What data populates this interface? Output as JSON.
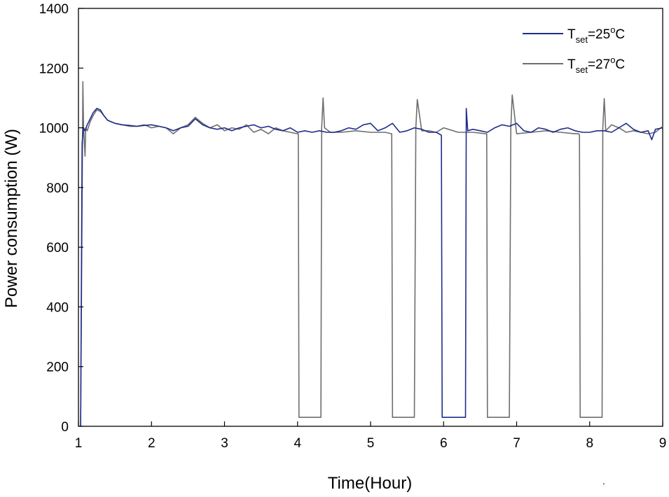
{
  "chart_data": {
    "type": "line",
    "title": "",
    "xlabel": "Time(Hour)",
    "ylabel": "Power consumption (W)",
    "xlim": [
      1,
      9
    ],
    "ylim": [
      0,
      1400
    ],
    "xticks": [
      1,
      2,
      3,
      4,
      5,
      6,
      7,
      8,
      9
    ],
    "yticks": [
      0,
      200,
      400,
      600,
      800,
      1000,
      1200,
      1400
    ],
    "grid": false,
    "legend_position": "top-right",
    "series": [
      {
        "name": "T_set=25°C",
        "label_main": "T",
        "label_sub": "set",
        "label_value": "=25",
        "label_deg": "o",
        "label_unit": "C",
        "color": "#1f2d8c",
        "x": [
          1.03,
          1.05,
          1.07,
          1.09,
          1.12,
          1.16,
          1.2,
          1.25,
          1.3,
          1.35,
          1.4,
          1.45,
          1.5,
          1.6,
          1.7,
          1.8,
          1.9,
          2.0,
          2.1,
          2.2,
          2.3,
          2.4,
          2.5,
          2.6,
          2.7,
          2.8,
          2.9,
          3.0,
          3.1,
          3.2,
          3.3,
          3.4,
          3.5,
          3.6,
          3.7,
          3.8,
          3.9,
          4.0,
          4.1,
          4.2,
          4.3,
          4.4,
          4.5,
          4.6,
          4.7,
          4.8,
          4.9,
          5.0,
          5.1,
          5.2,
          5.3,
          5.4,
          5.5,
          5.6,
          5.7,
          5.8,
          5.9,
          5.97,
          5.98,
          6.3,
          6.31,
          6.33,
          6.4,
          6.5,
          6.6,
          6.7,
          6.8,
          6.9,
          7.0,
          7.1,
          7.2,
          7.3,
          7.4,
          7.5,
          7.6,
          7.7,
          7.8,
          7.9,
          8.0,
          8.1,
          8.2,
          8.3,
          8.4,
          8.5,
          8.6,
          8.7,
          8.8,
          8.85,
          8.9,
          9.0
        ],
        "values": [
          0,
          950,
          1000,
          990,
          1010,
          1030,
          1050,
          1065,
          1060,
          1040,
          1025,
          1020,
          1015,
          1010,
          1008,
          1005,
          1008,
          1010,
          1005,
          1000,
          990,
          1000,
          1005,
          1030,
          1010,
          1000,
          995,
          1000,
          990,
          1000,
          1005,
          1010,
          1000,
          1005,
          995,
          990,
          1000,
          985,
          990,
          985,
          990,
          985,
          985,
          990,
          1000,
          995,
          1010,
          1015,
          990,
          1000,
          1015,
          985,
          990,
          1000,
          995,
          985,
          985,
          975,
          30,
          30,
          1065,
          990,
          995,
          990,
          985,
          1000,
          1010,
          1005,
          1015,
          990,
          985,
          1000,
          995,
          985,
          995,
          1000,
          990,
          985,
          985,
          990,
          990,
          985,
          1000,
          1015,
          995,
          985,
          990,
          960,
          995,
          1000
        ]
      },
      {
        "name": "T_set=27°C",
        "label_main": "T",
        "label_sub": "set",
        "label_value": "=27",
        "label_deg": "o",
        "label_unit": "C",
        "color": "#6e6e6e",
        "x": [
          1.03,
          1.06,
          1.07,
          1.09,
          1.1,
          1.12,
          1.16,
          1.2,
          1.25,
          1.3,
          1.35,
          1.4,
          1.5,
          1.6,
          1.7,
          1.8,
          1.9,
          2.0,
          2.1,
          2.2,
          2.3,
          2.4,
          2.5,
          2.6,
          2.7,
          2.8,
          2.9,
          3.0,
          3.1,
          3.2,
          3.3,
          3.4,
          3.5,
          3.6,
          3.7,
          3.8,
          3.9,
          4.0,
          4.01,
          4.02,
          4.32,
          4.33,
          4.35,
          4.37,
          4.45,
          4.6,
          4.8,
          5.0,
          5.2,
          5.29,
          5.3,
          5.6,
          5.62,
          5.64,
          5.7,
          5.8,
          5.9,
          6.0,
          6.2,
          6.4,
          6.58,
          6.59,
          6.6,
          6.9,
          6.92,
          6.94,
          7.0,
          7.2,
          7.4,
          7.6,
          7.8,
          7.85,
          7.86,
          7.87,
          8.17,
          8.18,
          8.2,
          8.22,
          8.3,
          8.4,
          8.5,
          8.6,
          8.7,
          8.8,
          8.9,
          9.0
        ],
        "values": [
          0,
          1155,
          1000,
          905,
          1000,
          990,
          1020,
          1040,
          1060,
          1055,
          1040,
          1025,
          1015,
          1010,
          1005,
          1005,
          1010,
          1000,
          1005,
          1000,
          980,
          1000,
          1010,
          1035,
          1015,
          1000,
          1010,
          990,
          1000,
          995,
          1010,
          985,
          995,
          980,
          1000,
          990,
          985,
          980,
          980,
          30,
          30,
          1000,
          1100,
          1000,
          985,
          985,
          990,
          985,
          985,
          980,
          30,
          30,
          1000,
          1095,
          990,
          990,
          985,
          1000,
          985,
          985,
          980,
          980,
          30,
          30,
          1000,
          1110,
          980,
          985,
          990,
          985,
          980,
          980,
          975,
          30,
          30,
          1000,
          1098,
          990,
          1010,
          1000,
          985,
          990,
          985,
          980,
          985,
          1005
        ]
      }
    ]
  },
  "stray_mark": "."
}
